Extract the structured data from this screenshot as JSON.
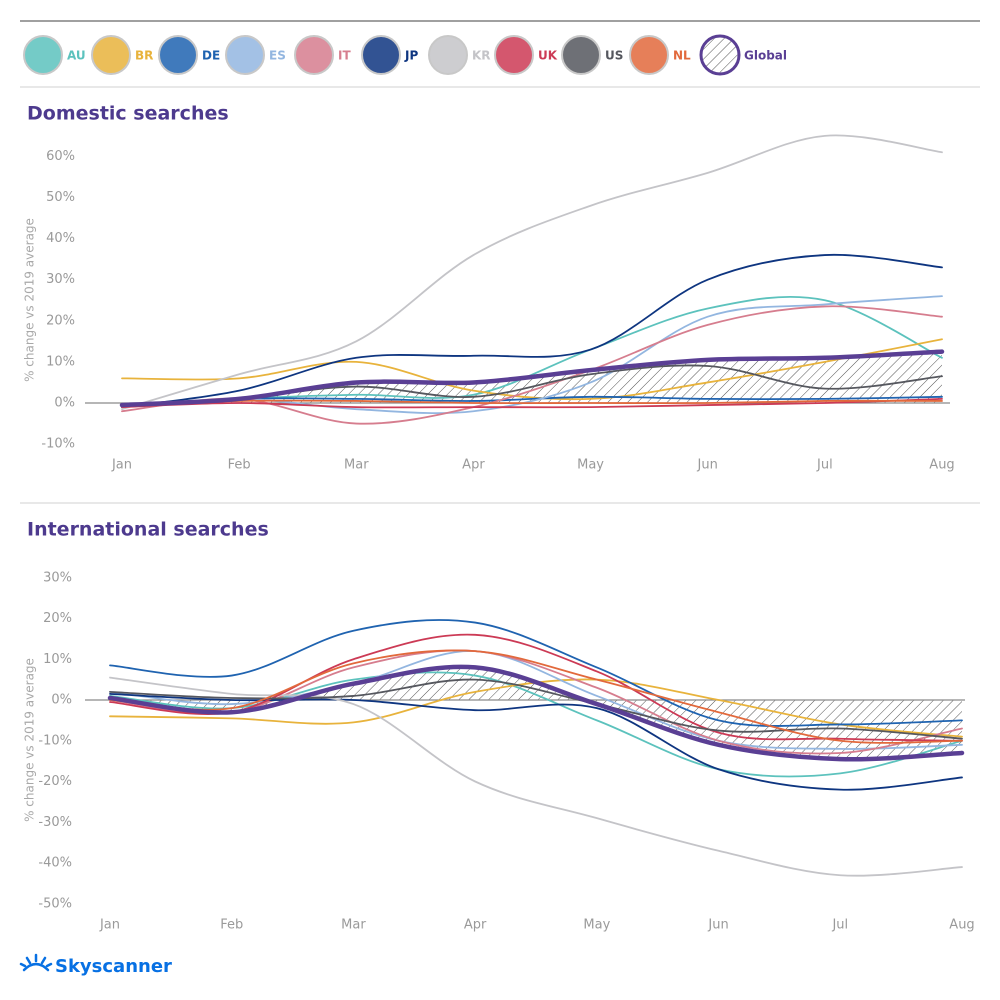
{
  "brand": "Skyscanner",
  "chart_data": [
    {
      "type": "line",
      "title": "Domestic searches",
      "y_label": "% change vs 2019 average",
      "categories": [
        "Jan",
        "Feb",
        "Mar",
        "Apr",
        "May",
        "Jun",
        "Jul",
        "Aug"
      ],
      "ylim": [
        -12,
        66
      ],
      "yticks": [
        {
          "value": -10,
          "label": "-10%"
        },
        {
          "value": 0,
          "label": "0%"
        },
        {
          "value": 10,
          "label": "10%"
        },
        {
          "value": 20,
          "label": "20%"
        },
        {
          "value": 30,
          "label": "30%"
        },
        {
          "value": 40,
          "label": "40%"
        },
        {
          "value": 50,
          "label": "50%"
        },
        {
          "value": 60,
          "label": "60%"
        }
      ],
      "series": [
        {
          "name": "AU",
          "color": "#5cc2bd",
          "values": [
            -1,
            1,
            2,
            2,
            13,
            23,
            25,
            11
          ]
        },
        {
          "name": "BR",
          "color": "#e8b33c",
          "values": [
            6,
            6,
            10,
            3,
            1,
            5,
            10,
            15.5
          ]
        },
        {
          "name": "DE",
          "color": "#1f63b0",
          "values": [
            -1,
            1,
            1,
            0.5,
            1.5,
            1,
            1,
            1.5
          ]
        },
        {
          "name": "ES",
          "color": "#93b6e0",
          "values": [
            -1,
            1,
            -1.5,
            -2,
            5,
            21,
            24,
            26
          ]
        },
        {
          "name": "IT",
          "color": "#d67d8e",
          "values": [
            -2,
            1,
            -5,
            -1,
            8,
            19,
            23.5,
            21
          ]
        },
        {
          "name": "JP",
          "color": "#0e3580",
          "values": [
            -1,
            3,
            11,
            11.5,
            13,
            30,
            36,
            33
          ]
        },
        {
          "name": "KR",
          "color": "#c4c4c8",
          "values": [
            -1.5,
            7,
            15,
            36,
            48,
            56,
            65,
            61
          ]
        },
        {
          "name": "UK",
          "color": "#cc3a55",
          "values": [
            -1,
            0,
            -1,
            -1,
            -1,
            -0.5,
            0,
            1
          ]
        },
        {
          "name": "US",
          "color": "#55575e",
          "values": [
            -0.5,
            1,
            4,
            1.5,
            7,
            9,
            3.5,
            6.5
          ]
        },
        {
          "name": "NL",
          "color": "#e2693c",
          "values": [
            -0.5,
            0.5,
            0.5,
            0,
            0,
            0,
            0.5,
            0.5
          ]
        },
        {
          "name": "Global",
          "color": "#5a3f94",
          "hatched": true,
          "values": [
            -0.5,
            1,
            5,
            5,
            8,
            10.5,
            11,
            12.5
          ]
        }
      ]
    },
    {
      "type": "line",
      "title": "International searches",
      "y_label": "% change vs 2019 average",
      "categories": [
        "Jan",
        "Feb",
        "Mar",
        "Apr",
        "May",
        "Jun",
        "Jul",
        "Aug"
      ],
      "ylim": [
        -52,
        32
      ],
      "yticks": [
        {
          "value": -50,
          "label": "-50%"
        },
        {
          "value": -40,
          "label": "-40%"
        },
        {
          "value": -30,
          "label": "-30%"
        },
        {
          "value": -20,
          "label": "-20%"
        },
        {
          "value": -10,
          "label": "-10%"
        },
        {
          "value": 0,
          "label": "0%"
        },
        {
          "value": 10,
          "label": "10%"
        },
        {
          "value": 20,
          "label": "20%"
        },
        {
          "value": 30,
          "label": "30%"
        }
      ],
      "series": [
        {
          "name": "AU",
          "color": "#5cc2bd",
          "values": [
            1,
            -2,
            5,
            6,
            -5,
            -17,
            -18,
            -10
          ]
        },
        {
          "name": "BR",
          "color": "#e8b33c",
          "values": [
            -4,
            -4.5,
            -5.5,
            2,
            5,
            0,
            -6,
            -9
          ]
        },
        {
          "name": "DE",
          "color": "#1f63b0",
          "values": [
            8.5,
            6,
            17,
            19,
            8,
            -5,
            -6,
            -5
          ]
        },
        {
          "name": "ES",
          "color": "#93b6e0",
          "values": [
            2,
            -1,
            4,
            12,
            1,
            -10,
            -12,
            -11
          ]
        },
        {
          "name": "IT",
          "color": "#d67d8e",
          "values": [
            0,
            -3,
            8,
            12,
            3,
            -10,
            -13,
            -7
          ]
        },
        {
          "name": "JP",
          "color": "#0e3580",
          "values": [
            1.5,
            0,
            0,
            -2.5,
            -2,
            -17,
            -22,
            -19
          ]
        },
        {
          "name": "KR",
          "color": "#c4c4c8",
          "values": [
            5.5,
            1.5,
            -1,
            -20,
            -29,
            -37,
            -43,
            -41
          ]
        },
        {
          "name": "UK",
          "color": "#cc3a55",
          "values": [
            -0.5,
            -3,
            10,
            16,
            7,
            -8,
            -9.5,
            -10
          ]
        },
        {
          "name": "US",
          "color": "#55575e",
          "values": [
            2,
            0.5,
            1,
            5,
            -1,
            -7.5,
            -7,
            -9.5
          ]
        },
        {
          "name": "NL",
          "color": "#e2693c",
          "values": [
            0,
            -2,
            9,
            12,
            5,
            -3,
            -10,
            -10
          ]
        },
        {
          "name": "Global",
          "color": "#5a3f94",
          "hatched": true,
          "values": [
            0.5,
            -3,
            4,
            8,
            -1,
            -11,
            -14.5,
            -13
          ]
        }
      ]
    }
  ]
}
